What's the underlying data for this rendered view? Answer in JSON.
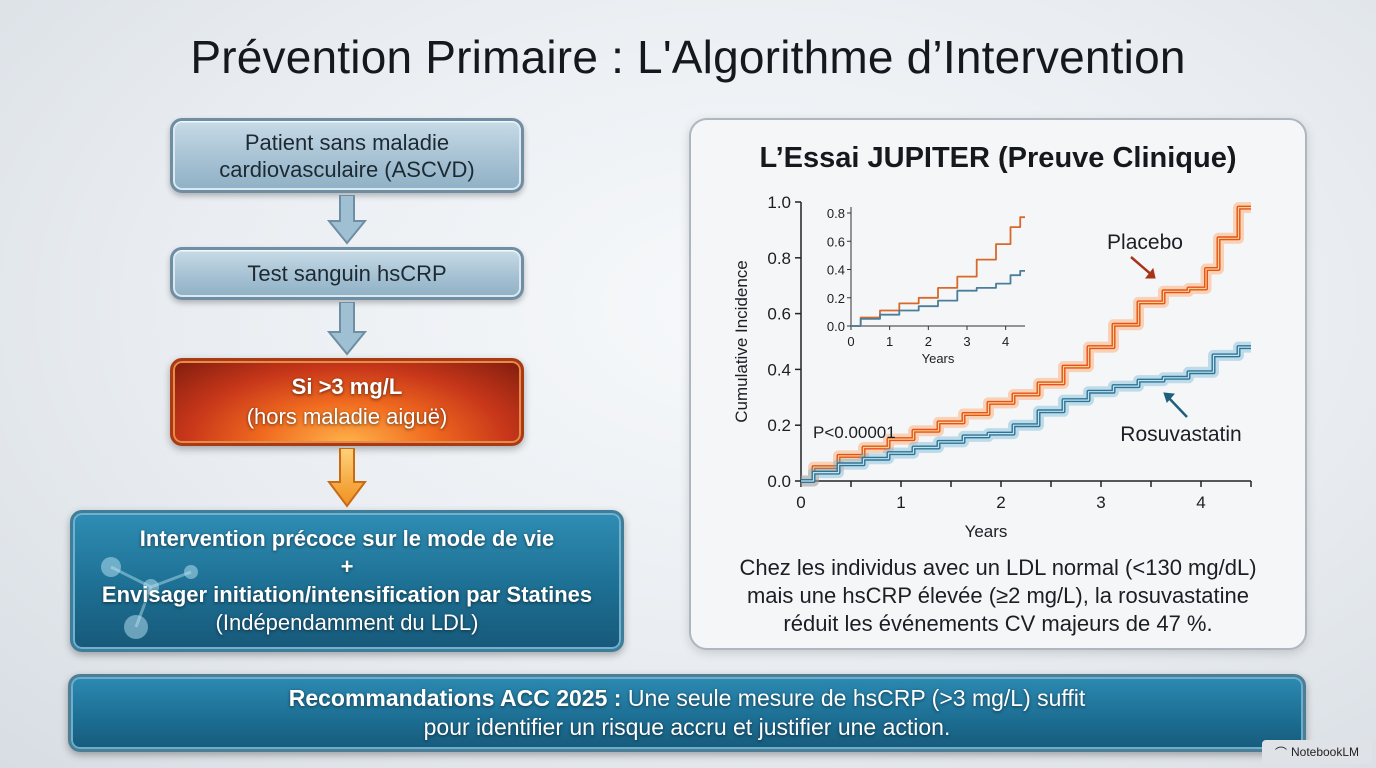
{
  "title": "Prévention Primaire : L'Algorithme d’Intervention",
  "flow": {
    "step1_line1": "Patient sans maladie",
    "step1_line2": "cardiovasculaire (ASCVD)",
    "step2": "Test sanguin hsCRP",
    "step3_line1": "Si >3 mg/L",
    "step3_line2": "(hors maladie aiguë)",
    "step4_line1": "Intervention précoce sur le mode de vie",
    "step4_line2": "+",
    "step4_line3": "Envisager initiation/intensification par Statines",
    "step4_line4": "(Indépendamment du LDL)"
  },
  "card": {
    "title": "L’Essai JUPITER (Preuve Clinique)",
    "caption_line1": "Chez les individus avec un LDL normal (<130 mg/dL)",
    "caption_line2": "mais une hsCRP élevée (≥2 mg/L), la rosuvastatine",
    "caption_line3": "réduit les événements CV majeurs de 47 %."
  },
  "chart_data": {
    "type": "line",
    "xlabel": "Years",
    "ylabel": "Cumulative Incidence",
    "xlim": [
      0,
      4.5
    ],
    "ylim": [
      0,
      1.0
    ],
    "xticks": [
      "0",
      "1",
      "2",
      "3",
      "4"
    ],
    "yticks": [
      "0.0",
      "0.2",
      "0.4",
      "0.6",
      "0.8",
      "1.0"
    ],
    "annotation": "P<0.00001",
    "series": [
      {
        "name": "Placebo",
        "color": "#e4531b",
        "x": [
          0,
          0.25,
          0.5,
          0.75,
          1.0,
          1.25,
          1.5,
          1.75,
          2.0,
          2.25,
          2.5,
          2.75,
          3.0,
          3.25,
          3.5,
          3.75,
          4.0,
          4.1,
          4.25,
          4.5
        ],
        "y": [
          0,
          0.05,
          0.09,
          0.12,
          0.15,
          0.18,
          0.21,
          0.24,
          0.28,
          0.31,
          0.35,
          0.41,
          0.48,
          0.56,
          0.64,
          0.68,
          0.69,
          0.76,
          0.87,
          0.98
        ]
      },
      {
        "name": "Rosuvastatin",
        "color": "#2f7494",
        "x": [
          0,
          0.25,
          0.5,
          0.75,
          1.0,
          1.25,
          1.5,
          1.75,
          2.0,
          2.25,
          2.5,
          2.75,
          3.0,
          3.25,
          3.5,
          3.75,
          4.0,
          4.25,
          4.5
        ],
        "y": [
          0,
          0.03,
          0.06,
          0.08,
          0.1,
          0.12,
          0.14,
          0.16,
          0.17,
          0.2,
          0.25,
          0.29,
          0.32,
          0.34,
          0.36,
          0.37,
          0.39,
          0.45,
          0.48
        ]
      }
    ],
    "inset": {
      "xlabel": "Years",
      "xlim": [
        0,
        4.5
      ],
      "ylim": [
        0,
        0.8
      ],
      "xticks": [
        "0",
        "1",
        "2",
        "3",
        "4"
      ],
      "yticks": [
        "0.0",
        "0.2",
        "0.4",
        "0.6",
        "0.8"
      ],
      "series": [
        {
          "color": "#d8692a",
          "x": [
            0,
            0.5,
            1.0,
            1.5,
            2.0,
            2.5,
            3.0,
            3.5,
            4.0,
            4.25,
            4.5
          ],
          "y": [
            0,
            0.06,
            0.11,
            0.16,
            0.2,
            0.27,
            0.35,
            0.47,
            0.58,
            0.7,
            0.77
          ]
        },
        {
          "color": "#4a7e9a",
          "x": [
            0,
            0.5,
            1.0,
            1.5,
            2.0,
            2.5,
            3.0,
            3.5,
            4.0,
            4.25,
            4.5
          ],
          "y": [
            0,
            0.05,
            0.08,
            0.11,
            0.14,
            0.18,
            0.25,
            0.27,
            0.3,
            0.36,
            0.39
          ]
        }
      ]
    }
  },
  "banner": {
    "bold": "Recommandations ACC 2025 :",
    "rest": "Une seule mesure de hsCRP (>3 mg/L) suffit",
    "line2": "pour identifier un risque accru et justifier une action."
  },
  "brand": "NotebookLM"
}
